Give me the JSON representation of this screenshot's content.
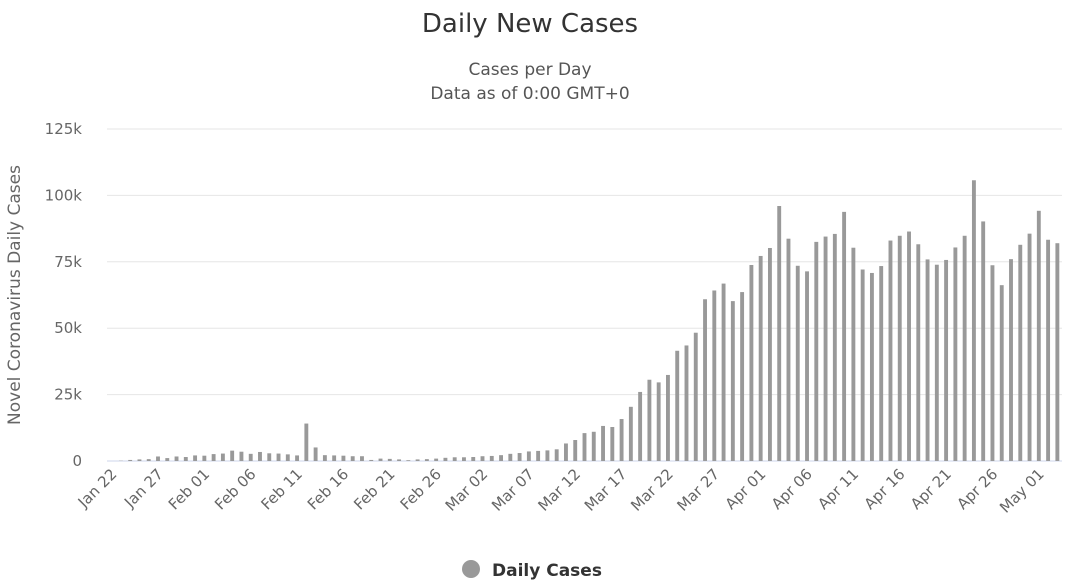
{
  "chart_data": {
    "type": "bar",
    "title": "Daily New Cases",
    "subtitle_lines": [
      "Cases per Day",
      "Data as of 0:00 GMT+0"
    ],
    "ylabel": "Novel Coronavirus Daily Cases",
    "ylim": [
      0,
      125000
    ],
    "yticks": [
      0,
      25000,
      50000,
      75000,
      100000,
      125000
    ],
    "ytick_labels": [
      "0",
      "25k",
      "50k",
      "75k",
      "100k",
      "125k"
    ],
    "xtick_labels": [
      "Jan 22",
      "Jan 27",
      "Feb 01",
      "Feb 06",
      "Feb 11",
      "Feb 16",
      "Feb 21",
      "Feb 26",
      "Mar 02",
      "Mar 07",
      "Mar 12",
      "Mar 17",
      "Mar 22",
      "Mar 27",
      "Apr 01",
      "Apr 06",
      "Apr 11",
      "Apr 16",
      "Apr 21",
      "Apr 26",
      "May 01"
    ],
    "xtick_every": 5,
    "grid": true,
    "legend_position": "bottom-center",
    "series": [
      {
        "name": "Daily Cases",
        "color": "#999999",
        "values": [
          0,
          100,
          400,
          600,
          700,
          1700,
          1100,
          1700,
          1500,
          2100,
          2000,
          2600,
          2800,
          3900,
          3500,
          2700,
          3400,
          2900,
          2800,
          2500,
          2100,
          14100,
          5100,
          2200,
          2100,
          2000,
          1800,
          1800,
          400,
          900,
          800,
          600,
          300,
          600,
          700,
          900,
          1200,
          1400,
          1400,
          1500,
          1800,
          1900,
          2200,
          2700,
          3000,
          3600,
          3800,
          4000,
          4400,
          6600,
          7900,
          10500,
          11000,
          13200,
          12800,
          15800,
          20400,
          26000,
          30600,
          29600,
          32400,
          41500,
          43500,
          48300,
          60900,
          64200,
          66800,
          60200,
          63600,
          73800,
          77200,
          80200,
          96000,
          83700,
          73500,
          71400,
          82500,
          84500,
          85500,
          93800,
          80300,
          72100,
          70800,
          73400,
          83000,
          84800,
          86400,
          81600,
          75900,
          73900,
          75700,
          80400,
          84800,
          105700,
          90200,
          73700,
          66200,
          76000,
          81400,
          85600,
          94200,
          83300,
          82000
        ]
      }
    ]
  }
}
